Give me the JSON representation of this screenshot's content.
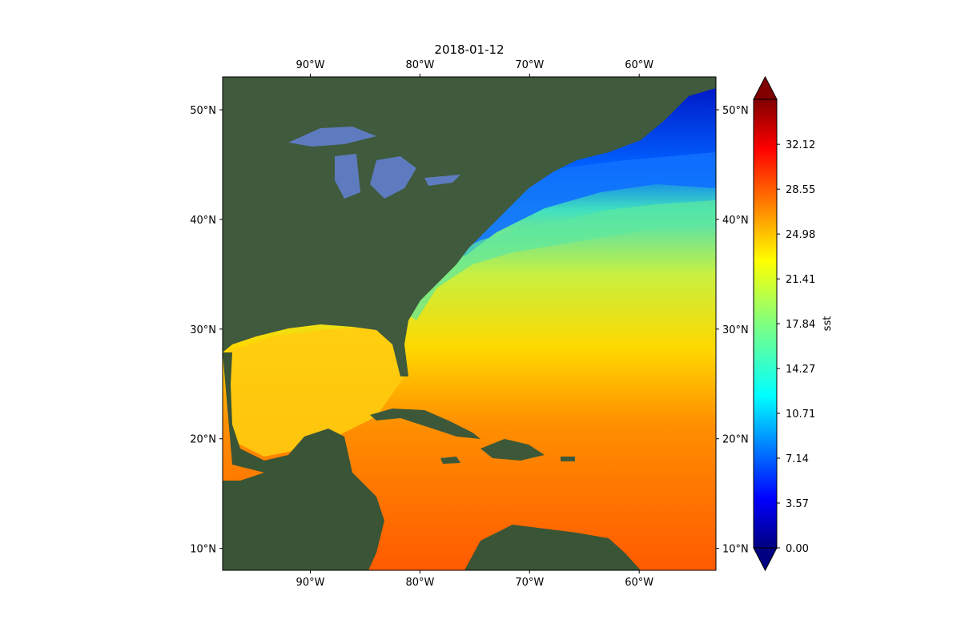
{
  "map": {
    "title": "2018-01-12",
    "variable": "sst",
    "lon_range": [
      -98,
      -53
    ],
    "lat_range": [
      8,
      53
    ],
    "lon_ticks": [
      {
        "value": -90,
        "label": "90°W"
      },
      {
        "value": -80,
        "label": "80°W"
      },
      {
        "value": -70,
        "label": "70°W"
      },
      {
        "value": -60,
        "label": "60°W"
      }
    ],
    "lat_ticks": [
      {
        "value": 10,
        "label": "10°N"
      },
      {
        "value": 20,
        "label": "20°N"
      },
      {
        "value": 30,
        "label": "30°N"
      },
      {
        "value": 40,
        "label": "40°N"
      },
      {
        "value": 50,
        "label": "50°N"
      }
    ]
  },
  "colorbar": {
    "label": "sst",
    "colormap": "jet",
    "range": [
      0,
      35.7
    ],
    "extend": "both",
    "ticks": [
      "0.00",
      "3.57",
      "7.14",
      "10.71",
      "14.27",
      "17.84",
      "21.41",
      "24.98",
      "28.55",
      "32.12"
    ]
  }
}
